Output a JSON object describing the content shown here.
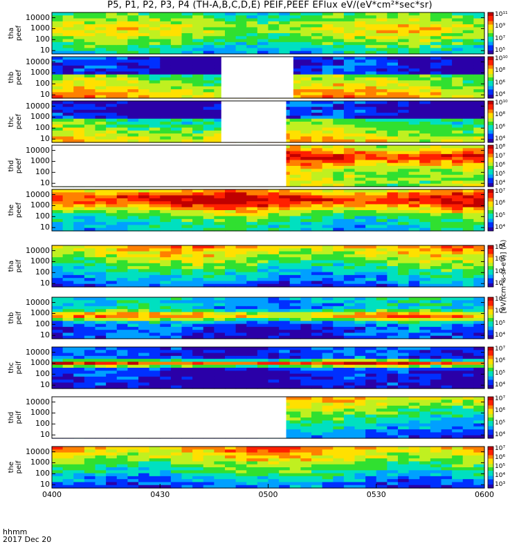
{
  "title": "P5, P1, P2, P3, P4 (TH-A,B,C,D,E) PEIF,PEEF EFlux eV/(eV*cm²*sec*sr)",
  "colorbar_units": "[eV/(cm²-s-sr-eV)] (Å)",
  "time_axis": {
    "label_line1": "hhmm",
    "label_line2": "2017 Dec 20",
    "ticks": [
      "0400",
      "0430",
      "0500",
      "0530",
      "0600"
    ]
  },
  "chart_data": {
    "type": "heatmap",
    "x_range": [
      "04:00",
      "06:00"
    ],
    "y_scale": "log",
    "y_range_eV": [
      5,
      30000
    ],
    "y_ticks": [
      "10",
      "100",
      "1000",
      "10000"
    ],
    "panels": [
      {
        "probe_label": "tha",
        "species_label": "peef",
        "cb_ticks": [
          "10¹¹",
          "10⁹",
          "10⁷",
          "10⁵"
        ],
        "gap": null
      },
      {
        "probe_label": "thb",
        "species_label": "peef",
        "cb_ticks": [
          "10¹⁰",
          "10⁸",
          "10⁶",
          "10⁴"
        ],
        "gap": [
          "04:47",
          "05:07"
        ]
      },
      {
        "probe_label": "thc",
        "species_label": "peef",
        "cb_ticks": [
          "10¹⁰",
          "10⁸",
          "10⁶",
          "10⁴"
        ],
        "gap": [
          "04:47",
          "05:05"
        ]
      },
      {
        "probe_label": "thd",
        "species_label": "peef",
        "cb_ticks": [
          "10⁸",
          "10⁷",
          "10⁶",
          "10⁵",
          "10⁴"
        ],
        "gap": [
          "04:00",
          "05:05"
        ]
      },
      {
        "probe_label": "the",
        "species_label": "peef",
        "cb_ticks": [
          "10⁷",
          "10⁶",
          "10⁵",
          "10⁴"
        ],
        "gap": null
      },
      {
        "probe_label": "tha",
        "species_label": "peif",
        "cb_ticks": [
          "10⁷",
          "10⁶",
          "10⁵",
          "10⁴"
        ],
        "gap": null
      },
      {
        "probe_label": "thb",
        "species_label": "peif",
        "cb_ticks": [
          "10⁷",
          "10⁶",
          "10⁵",
          "10⁴"
        ],
        "gap": null
      },
      {
        "probe_label": "thc",
        "species_label": "peif",
        "cb_ticks": [
          "10⁷",
          "10⁶",
          "10⁵",
          "10⁴"
        ],
        "gap": null
      },
      {
        "probe_label": "thd",
        "species_label": "peif",
        "cb_ticks": [
          "10⁷",
          "10⁶",
          "10⁵",
          "10⁴"
        ],
        "gap": [
          "04:00",
          "05:05"
        ]
      },
      {
        "probe_label": "the",
        "species_label": "peif",
        "cb_ticks": [
          "10⁷",
          "10⁶",
          "10⁵",
          "10⁴",
          "10³"
        ],
        "gap": null
      }
    ]
  },
  "colors": {
    "flux_scale": [
      "#2a00a8",
      "#0030ff",
      "#00a0ff",
      "#00e0c0",
      "#30e030",
      "#c0f020",
      "#ffe000",
      "#ff8000",
      "#ff2000",
      "#c00000"
    ]
  }
}
